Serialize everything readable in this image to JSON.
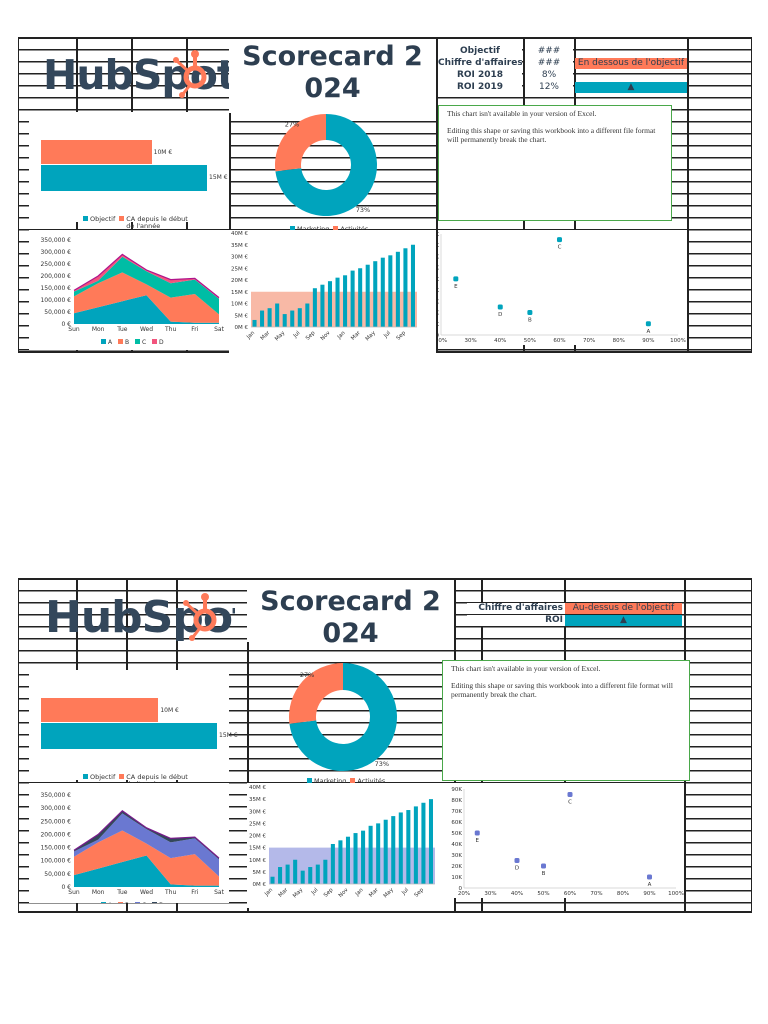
{
  "sections": [
    {
      "logo_text": "HubSpot",
      "title_line1": "Scorecard 2",
      "title_line2": "024",
      "kpi_rows": [
        {
          "label": "Objectif",
          "value": "###"
        },
        {
          "label": "Chiffre d'affaires",
          "value": "###",
          "status": "En dessous de l'objectif",
          "status_color": "#ff7a59"
        },
        {
          "label": "ROI 2018",
          "value": "8%"
        },
        {
          "label": "ROI 2019",
          "value": "12%",
          "status": "▲",
          "status_color": "#00a4bd"
        }
      ],
      "unavailable_message": {
        "line1": "This chart isn't available in your version of Excel.",
        "line2": "Editing this shape or saving this workbook into a different file format will permanently break the chart."
      },
      "colors": {
        "A": "#00a4bd",
        "B": "#ff7a59",
        "C": "#00bda5",
        "D": "#f2547d",
        "outline": "#b0148c",
        "band": "#f8b9a6",
        "scatter": "#00a4bd"
      },
      "bar_chart": {
        "bars": [
          {
            "name": "CA depuis le début de l'année",
            "value": 10,
            "label": "10M €",
            "color": "#ff7a59"
          },
          {
            "name": "Objectif",
            "value": 15,
            "label": "15M €",
            "color": "#00a4bd"
          }
        ],
        "legend": [
          "Objectif",
          "CA depuis le début de l'année"
        ]
      },
      "donut": {
        "slices": [
          {
            "name": "Marketing",
            "value": 73,
            "label": "73%",
            "color": "#00a4bd"
          },
          {
            "name": "Activités",
            "value": 27,
            "label": "27%",
            "color": "#ff7a59"
          }
        ],
        "legend": [
          "Marketing",
          "Activités"
        ]
      }
    },
    {
      "logo_text": "HubSpot",
      "title_line1": "Scorecard 2",
      "title_line2": "024",
      "kpi_rows": [
        {
          "label": "Chiffre d'affaires",
          "status": "Au-dessus de l'objectif",
          "status_color": "#ff7a59"
        },
        {
          "label": "ROI",
          "status": "▲",
          "status_color": "#00a4bd"
        }
      ],
      "unavailable_message": {
        "line1": "This chart isn't available in your version of Excel.",
        "line2": "Editing this shape or saving this workbook into a different file format will permanently break the chart."
      },
      "colors": {
        "A": "#00a4bd",
        "B": "#ff7a59",
        "C": "#6a78d1",
        "D": "#33475b",
        "outline": "#7a1a8c",
        "band": "#b4b9e9",
        "scatter": "#6a78d1"
      },
      "bar_chart": {
        "bars": [
          {
            "name": "CA depuis le début de l'année",
            "value": 10,
            "label": "10M €",
            "color": "#ff7a59"
          },
          {
            "name": "Objectif",
            "value": 15,
            "label": "15M €",
            "color": "#00a4bd"
          }
        ],
        "legend": [
          "Objectif",
          "CA depuis le début de l'année"
        ]
      },
      "donut": {
        "slices": [
          {
            "name": "Marketing",
            "value": 73,
            "label": "73%",
            "color": "#00a4bd"
          },
          {
            "name": "Activités",
            "value": 27,
            "label": "27%",
            "color": "#ff7a59"
          }
        ],
        "legend": [
          "Marketing",
          "Activités"
        ]
      }
    }
  ],
  "chart_data": [
    {
      "type": "area",
      "title": "",
      "categories": [
        "Sun",
        "Mon",
        "Tue",
        "Wed",
        "Thu",
        "Fri",
        "Sat"
      ],
      "stacked": true,
      "series": [
        {
          "name": "A",
          "values": [
            45000,
            70000,
            95000,
            120000,
            10000,
            5000,
            5000
          ]
        },
        {
          "name": "B",
          "values": [
            70000,
            100000,
            120000,
            45000,
            100000,
            120000,
            35000
          ]
        },
        {
          "name": "C",
          "values": [
            20000,
            10000,
            65000,
            55000,
            60000,
            60000,
            65000
          ]
        },
        {
          "name": "D",
          "values": [
            5000,
            20000,
            10000,
            5000,
            15000,
            5000,
            5000
          ]
        }
      ],
      "yticks": [
        "0 €",
        "50,000 €",
        "100,000 €",
        "150,000 €",
        "200,000 €",
        "250,000 €",
        "300,000 €",
        "350,000 €"
      ],
      "ylim": [
        0,
        350000
      ],
      "legend": [
        "A",
        "B",
        "C",
        "D"
      ]
    },
    {
      "type": "bar",
      "title": "",
      "categories": [
        "Jan",
        "Feb",
        "Mar",
        "Apr",
        "May",
        "Jun",
        "Jul",
        "Aug",
        "Sep",
        "Oct",
        "Nov",
        "Dec",
        "Jan",
        "Feb",
        "Mar",
        "Apr",
        "May",
        "Jun",
        "Jul",
        "Aug",
        "Sep",
        "Oct"
      ],
      "tick_labels": [
        "Jan",
        "Mar",
        "May",
        "Jul",
        "Sep",
        "Nov",
        "Jan",
        "Mar",
        "May",
        "Jul",
        "Sep"
      ],
      "values": [
        3,
        7,
        8,
        10,
        5.5,
        7,
        8,
        10,
        16.5,
        18,
        19.5,
        21,
        22,
        24,
        25,
        26.5,
        28,
        29.5,
        30.5,
        32,
        33.5,
        35
      ],
      "target_band": 15,
      "yticks": [
        "0M €",
        "5M €",
        "10M €",
        "15M €",
        "20M €",
        "25M €",
        "30M €",
        "35M €",
        "40M €"
      ],
      "ylim": [
        0,
        40
      ]
    },
    {
      "type": "scatter",
      "title": "",
      "points": [
        {
          "label": "A",
          "x": 90,
          "y": 10000
        },
        {
          "label": "B",
          "x": 50,
          "y": 20000
        },
        {
          "label": "C",
          "x": 60,
          "y": 85000
        },
        {
          "label": "D",
          "x": 40,
          "y": 25000
        },
        {
          "label": "E",
          "x": 25,
          "y": 50000
        }
      ],
      "xticks": [
        "20%",
        "30%",
        "40%",
        "50%",
        "60%",
        "70%",
        "80%",
        "90%",
        "100%"
      ],
      "yticks": [
        "0",
        "10K",
        "20K",
        "30K",
        "40K",
        "50K",
        "60K",
        "70K",
        "80K",
        "90K"
      ],
      "xlim": [
        20,
        100
      ],
      "ylim": [
        0,
        90000
      ]
    }
  ]
}
